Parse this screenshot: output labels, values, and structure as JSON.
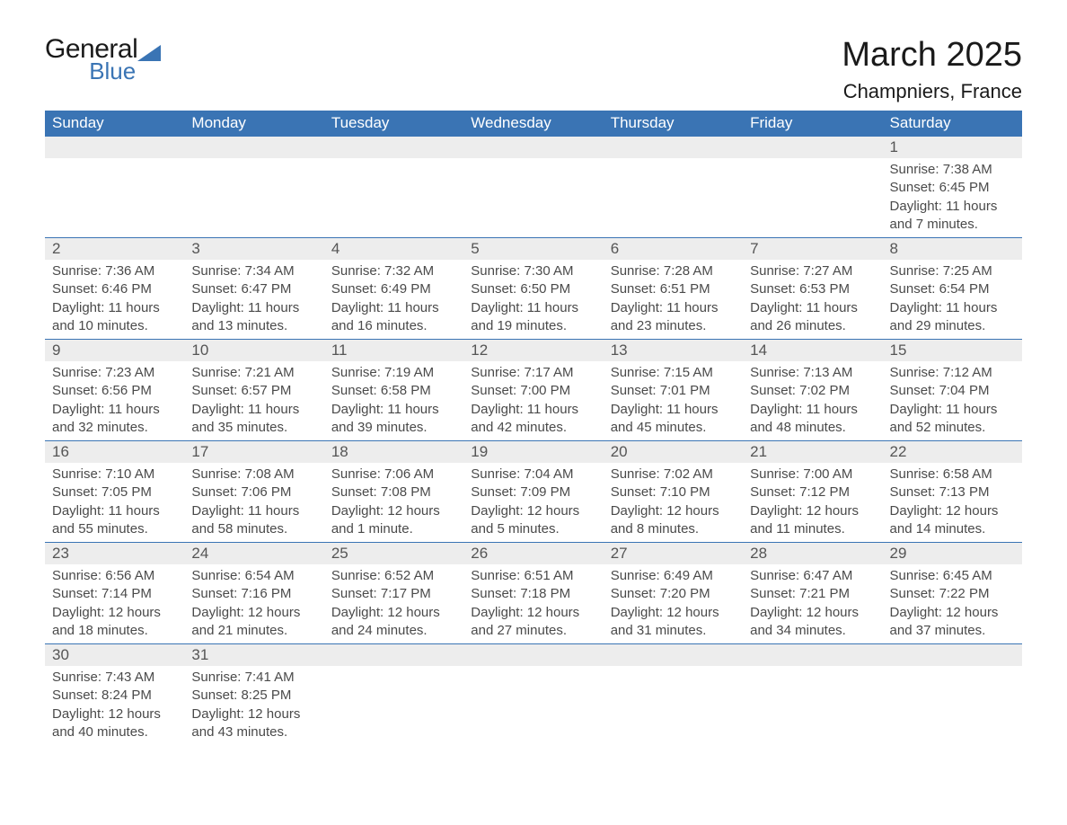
{
  "logo": {
    "textA": "General",
    "textB": "Blue",
    "triangleColor": "#3a74b4"
  },
  "title": "March 2025",
  "location": "Champniers, France",
  "colors": {
    "headerBg": "#3a74b4",
    "headerText": "#ffffff",
    "dayNumBg": "#ededed",
    "dayNumText": "#555555",
    "bodyText": "#4a4a4a",
    "rowBorder": "#3a74b4",
    "pageBg": "#ffffff"
  },
  "fonts": {
    "family": "Arial, Helvetica, sans-serif",
    "monthTitleSize": 38,
    "locationSize": 22,
    "weekdayHeaderSize": 17,
    "dayNumSize": 17,
    "bodySize": 15
  },
  "layout": {
    "columns": 7,
    "rows": 6,
    "firstDayColumn": 6
  },
  "weekdays": [
    "Sunday",
    "Monday",
    "Tuesday",
    "Wednesday",
    "Thursday",
    "Friday",
    "Saturday"
  ],
  "days": [
    {
      "n": 1,
      "sunrise": "7:38 AM",
      "sunset": "6:45 PM",
      "daylight": "11 hours and 7 minutes."
    },
    {
      "n": 2,
      "sunrise": "7:36 AM",
      "sunset": "6:46 PM",
      "daylight": "11 hours and 10 minutes."
    },
    {
      "n": 3,
      "sunrise": "7:34 AM",
      "sunset": "6:47 PM",
      "daylight": "11 hours and 13 minutes."
    },
    {
      "n": 4,
      "sunrise": "7:32 AM",
      "sunset": "6:49 PM",
      "daylight": "11 hours and 16 minutes."
    },
    {
      "n": 5,
      "sunrise": "7:30 AM",
      "sunset": "6:50 PM",
      "daylight": "11 hours and 19 minutes."
    },
    {
      "n": 6,
      "sunrise": "7:28 AM",
      "sunset": "6:51 PM",
      "daylight": "11 hours and 23 minutes."
    },
    {
      "n": 7,
      "sunrise": "7:27 AM",
      "sunset": "6:53 PM",
      "daylight": "11 hours and 26 minutes."
    },
    {
      "n": 8,
      "sunrise": "7:25 AM",
      "sunset": "6:54 PM",
      "daylight": "11 hours and 29 minutes."
    },
    {
      "n": 9,
      "sunrise": "7:23 AM",
      "sunset": "6:56 PM",
      "daylight": "11 hours and 32 minutes."
    },
    {
      "n": 10,
      "sunrise": "7:21 AM",
      "sunset": "6:57 PM",
      "daylight": "11 hours and 35 minutes."
    },
    {
      "n": 11,
      "sunrise": "7:19 AM",
      "sunset": "6:58 PM",
      "daylight": "11 hours and 39 minutes."
    },
    {
      "n": 12,
      "sunrise": "7:17 AM",
      "sunset": "7:00 PM",
      "daylight": "11 hours and 42 minutes."
    },
    {
      "n": 13,
      "sunrise": "7:15 AM",
      "sunset": "7:01 PM",
      "daylight": "11 hours and 45 minutes."
    },
    {
      "n": 14,
      "sunrise": "7:13 AM",
      "sunset": "7:02 PM",
      "daylight": "11 hours and 48 minutes."
    },
    {
      "n": 15,
      "sunrise": "7:12 AM",
      "sunset": "7:04 PM",
      "daylight": "11 hours and 52 minutes."
    },
    {
      "n": 16,
      "sunrise": "7:10 AM",
      "sunset": "7:05 PM",
      "daylight": "11 hours and 55 minutes."
    },
    {
      "n": 17,
      "sunrise": "7:08 AM",
      "sunset": "7:06 PM",
      "daylight": "11 hours and 58 minutes."
    },
    {
      "n": 18,
      "sunrise": "7:06 AM",
      "sunset": "7:08 PM",
      "daylight": "12 hours and 1 minute."
    },
    {
      "n": 19,
      "sunrise": "7:04 AM",
      "sunset": "7:09 PM",
      "daylight": "12 hours and 5 minutes."
    },
    {
      "n": 20,
      "sunrise": "7:02 AM",
      "sunset": "7:10 PM",
      "daylight": "12 hours and 8 minutes."
    },
    {
      "n": 21,
      "sunrise": "7:00 AM",
      "sunset": "7:12 PM",
      "daylight": "12 hours and 11 minutes."
    },
    {
      "n": 22,
      "sunrise": "6:58 AM",
      "sunset": "7:13 PM",
      "daylight": "12 hours and 14 minutes."
    },
    {
      "n": 23,
      "sunrise": "6:56 AM",
      "sunset": "7:14 PM",
      "daylight": "12 hours and 18 minutes."
    },
    {
      "n": 24,
      "sunrise": "6:54 AM",
      "sunset": "7:16 PM",
      "daylight": "12 hours and 21 minutes."
    },
    {
      "n": 25,
      "sunrise": "6:52 AM",
      "sunset": "7:17 PM",
      "daylight": "12 hours and 24 minutes."
    },
    {
      "n": 26,
      "sunrise": "6:51 AM",
      "sunset": "7:18 PM",
      "daylight": "12 hours and 27 minutes."
    },
    {
      "n": 27,
      "sunrise": "6:49 AM",
      "sunset": "7:20 PM",
      "daylight": "12 hours and 31 minutes."
    },
    {
      "n": 28,
      "sunrise": "6:47 AM",
      "sunset": "7:21 PM",
      "daylight": "12 hours and 34 minutes."
    },
    {
      "n": 29,
      "sunrise": "6:45 AM",
      "sunset": "7:22 PM",
      "daylight": "12 hours and 37 minutes."
    },
    {
      "n": 30,
      "sunrise": "7:43 AM",
      "sunset": "8:24 PM",
      "daylight": "12 hours and 40 minutes."
    },
    {
      "n": 31,
      "sunrise": "7:41 AM",
      "sunset": "8:25 PM",
      "daylight": "12 hours and 43 minutes."
    }
  ],
  "labels": {
    "sunrise": "Sunrise:",
    "sunset": "Sunset:",
    "daylight": "Daylight:"
  }
}
